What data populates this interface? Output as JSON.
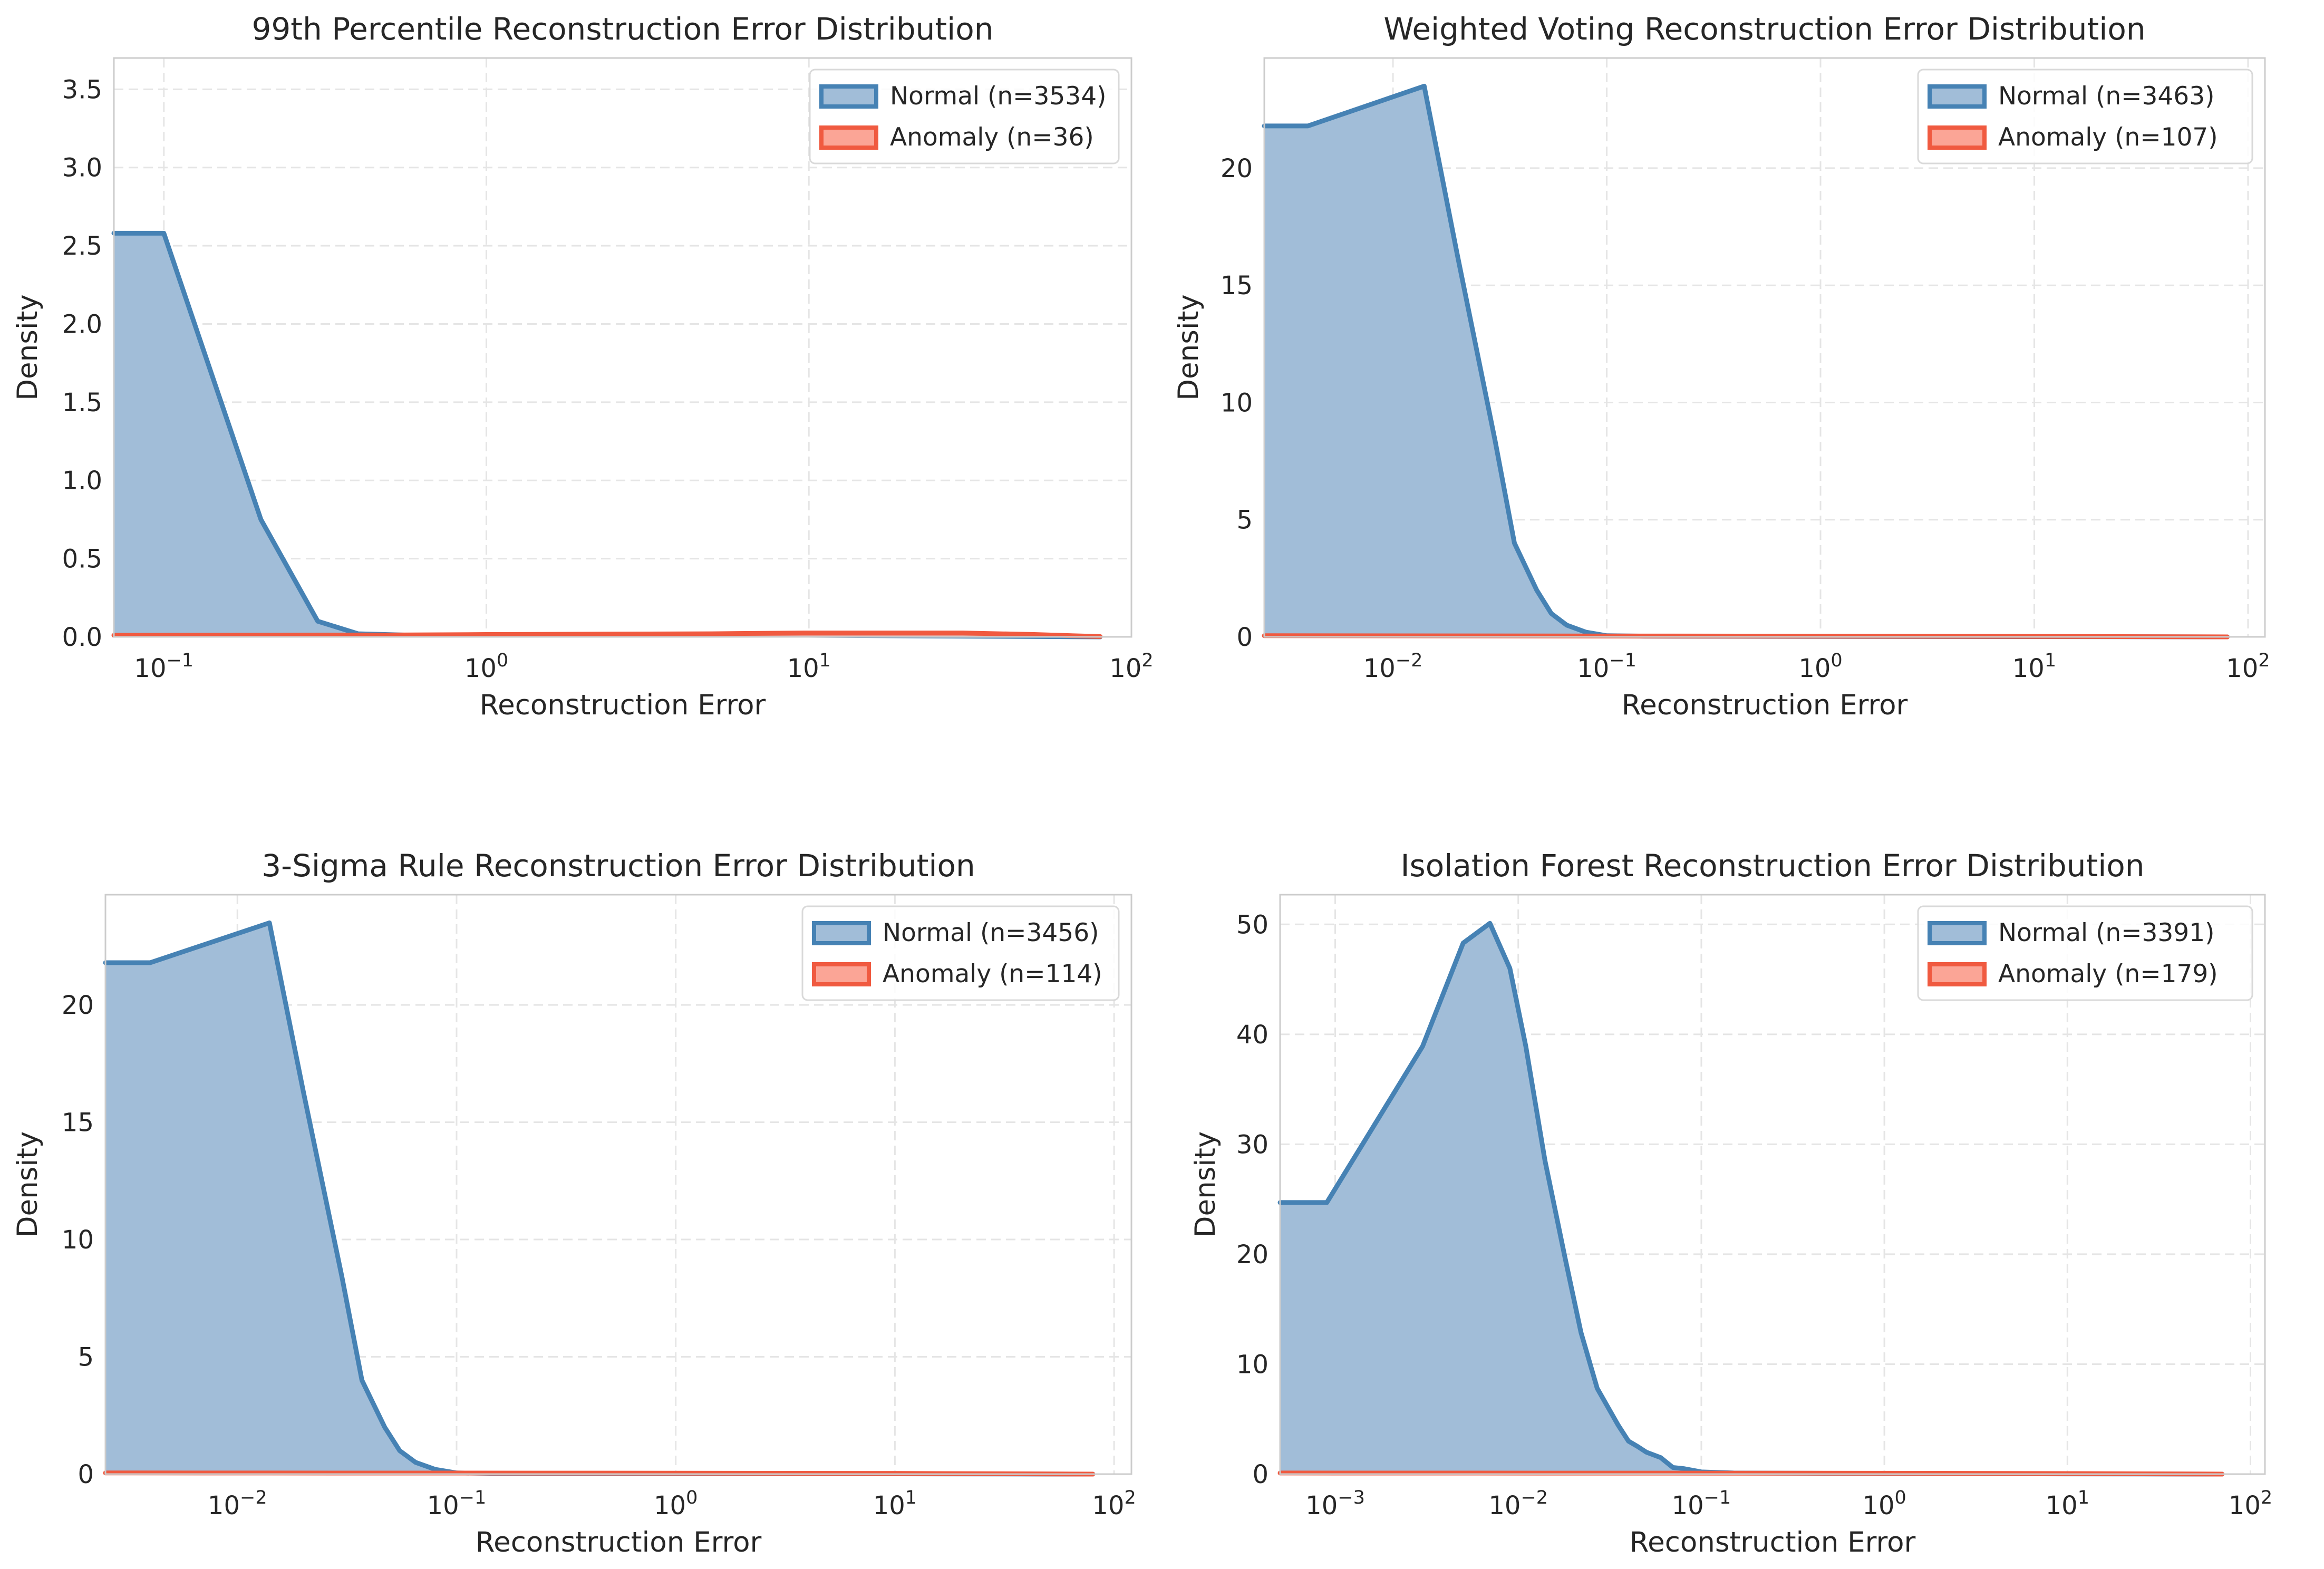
{
  "colors": {
    "normal_line": "#4682b4",
    "normal_fill": "#a1bdd8",
    "anomaly_line": "#f05a40",
    "anomaly_fill": "#fba596"
  },
  "chart_data": [
    {
      "type": "area",
      "title": "99th Percentile Reconstruction Error Distribution",
      "xlabel": "Reconstruction Error",
      "ylabel": "Density",
      "xscale": "log",
      "xlim": [
        0.07,
        100
      ],
      "ylim": [
        0,
        3.7
      ],
      "xticks": [
        {
          "value": 0.1,
          "exp": "−1"
        },
        {
          "value": 1,
          "exp": "0"
        },
        {
          "value": 10,
          "exp": "1"
        },
        {
          "value": 100,
          "exp": "2"
        }
      ],
      "yticks": [
        {
          "value": 0,
          "label": "0.0"
        },
        {
          "value": 0.5,
          "label": "0.5"
        },
        {
          "value": 1.0,
          "label": "1.0"
        },
        {
          "value": 1.5,
          "label": "1.5"
        },
        {
          "value": 2.0,
          "label": "2.0"
        },
        {
          "value": 2.5,
          "label": "2.5"
        },
        {
          "value": 3.0,
          "label": "3.0"
        },
        {
          "value": 3.5,
          "label": "3.5"
        }
      ],
      "grid": true,
      "legend_position": "top-right",
      "series": [
        {
          "name": "Normal (n=3534)",
          "x": [
            0.07,
            0.1,
            0.2,
            0.3,
            0.4,
            0.6,
            1,
            10,
            80
          ],
          "y": [
            2.58,
            2.58,
            0.75,
            0.1,
            0.02,
            0.01,
            0.01,
            0.01,
            0.0
          ]
        },
        {
          "name": "Anomaly (n=36)",
          "x": [
            0.07,
            0.5,
            1,
            5,
            10,
            30,
            50,
            80
          ],
          "y": [
            0.01,
            0.012,
            0.015,
            0.02,
            0.025,
            0.025,
            0.015,
            0.002
          ]
        }
      ]
    },
    {
      "type": "area",
      "title": "Weighted Voting Reconstruction Error Distribution",
      "xlabel": "Reconstruction Error",
      "ylabel": "Density",
      "xscale": "log",
      "xlim": [
        0.0025,
        120
      ],
      "ylim": [
        0,
        24.7
      ],
      "xticks": [
        {
          "value": 0.01,
          "exp": "−2"
        },
        {
          "value": 0.1,
          "exp": "−1"
        },
        {
          "value": 1,
          "exp": "0"
        },
        {
          "value": 10,
          "exp": "1"
        },
        {
          "value": 100,
          "exp": "2"
        }
      ],
      "yticks": [
        {
          "value": 0,
          "label": "0"
        },
        {
          "value": 5,
          "label": "5"
        },
        {
          "value": 10,
          "label": "10"
        },
        {
          "value": 15,
          "label": "15"
        },
        {
          "value": 20,
          "label": "20"
        }
      ],
      "grid": true,
      "legend_position": "top-right",
      "series": [
        {
          "name": "Normal (n=3463)",
          "x": [
            0.0025,
            0.004,
            0.014,
            0.02,
            0.03,
            0.037,
            0.047,
            0.055,
            0.065,
            0.08,
            0.1,
            0.15,
            1,
            10,
            80
          ],
          "y": [
            21.8,
            21.8,
            23.5,
            16.3,
            8.4,
            4.0,
            2.0,
            1.0,
            0.5,
            0.2,
            0.05,
            0.03,
            0.02,
            0.01,
            0.0
          ]
        },
        {
          "name": "Anomaly (n=107)",
          "x": [
            0.0025,
            1,
            10,
            80
          ],
          "y": [
            0.05,
            0.03,
            0.02,
            0.0
          ]
        }
      ]
    },
    {
      "type": "area",
      "title": "3-Sigma Rule Reconstruction Error Distribution",
      "xlabel": "Reconstruction Error",
      "ylabel": "Density",
      "xscale": "log",
      "xlim": [
        0.0025,
        120
      ],
      "ylim": [
        0,
        24.7
      ],
      "xticks": [
        {
          "value": 0.01,
          "exp": "−2"
        },
        {
          "value": 0.1,
          "exp": "−1"
        },
        {
          "value": 1,
          "exp": "0"
        },
        {
          "value": 10,
          "exp": "1"
        },
        {
          "value": 100,
          "exp": "2"
        }
      ],
      "yticks": [
        {
          "value": 0,
          "label": "0"
        },
        {
          "value": 5,
          "label": "5"
        },
        {
          "value": 10,
          "label": "10"
        },
        {
          "value": 15,
          "label": "15"
        },
        {
          "value": 20,
          "label": "20"
        }
      ],
      "grid": true,
      "legend_position": "top-right",
      "series": [
        {
          "name": "Normal (n=3456)",
          "x": [
            0.0025,
            0.004,
            0.014,
            0.02,
            0.03,
            0.037,
            0.047,
            0.055,
            0.065,
            0.08,
            0.1,
            0.15,
            1,
            10,
            80
          ],
          "y": [
            21.8,
            21.8,
            23.5,
            16.3,
            8.4,
            4.0,
            2.0,
            1.0,
            0.5,
            0.2,
            0.05,
            0.03,
            0.02,
            0.01,
            0.0
          ]
        },
        {
          "name": "Anomaly (n=114)",
          "x": [
            0.0025,
            1,
            10,
            80
          ],
          "y": [
            0.05,
            0.04,
            0.03,
            0.0
          ]
        }
      ]
    },
    {
      "type": "area",
      "title": "Isolation Forest Reconstruction Error Distribution",
      "xlabel": "Reconstruction Error",
      "ylabel": "Density",
      "xscale": "log",
      "xlim": [
        0.0005,
        120
      ],
      "ylim": [
        0,
        52.7
      ],
      "xticks": [
        {
          "value": 0.001,
          "exp": "−3"
        },
        {
          "value": 0.01,
          "exp": "−2"
        },
        {
          "value": 0.1,
          "exp": "−1"
        },
        {
          "value": 1,
          "exp": "0"
        },
        {
          "value": 10,
          "exp": "1"
        },
        {
          "value": 100,
          "exp": "2"
        }
      ],
      "yticks": [
        {
          "value": 0,
          "label": "0"
        },
        {
          "value": 10,
          "label": "10"
        },
        {
          "value": 20,
          "label": "20"
        },
        {
          "value": 30,
          "label": "30"
        },
        {
          "value": 40,
          "label": "40"
        },
        {
          "value": 50,
          "label": "50"
        }
      ],
      "grid": true,
      "legend_position": "top-right",
      "series": [
        {
          "name": "Normal (n=3391)",
          "x": [
            0.0005,
            0.0009,
            0.003,
            0.005,
            0.007,
            0.009,
            0.011,
            0.014,
            0.018,
            0.022,
            0.027,
            0.035,
            0.04,
            0.045,
            0.05,
            0.06,
            0.07,
            0.08,
            0.1,
            0.15,
            1,
            10,
            70
          ],
          "y": [
            24.7,
            24.7,
            38.9,
            48.3,
            50.1,
            46.0,
            38.9,
            28.5,
            19.7,
            12.9,
            7.8,
            4.5,
            3.0,
            2.5,
            2.0,
            1.5,
            0.6,
            0.5,
            0.2,
            0.1,
            0.05,
            0.02,
            0.0
          ]
        },
        {
          "name": "Anomaly (n=179)",
          "x": [
            0.0005,
            1,
            10,
            70
          ],
          "y": [
            0.1,
            0.08,
            0.05,
            0.0
          ]
        }
      ]
    }
  ]
}
